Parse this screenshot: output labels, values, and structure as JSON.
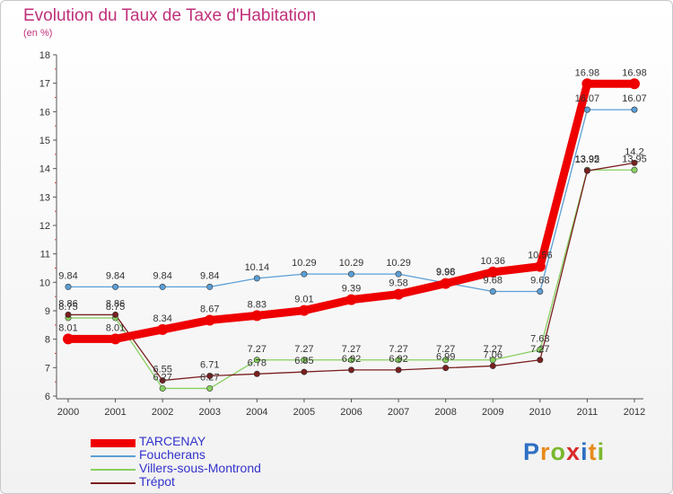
{
  "header": {
    "title": "Evolution du Taux de Taxe d'Habitation",
    "subtitle": "(en %)"
  },
  "logo": {
    "text": "Proxiti",
    "colors": [
      "#2e6fc4",
      "#e88a1a",
      "#7ab82e",
      "#d92b2b"
    ]
  },
  "chart_data": {
    "type": "line",
    "x": [
      "2000",
      "2001",
      "2002",
      "2003",
      "2004",
      "2005",
      "2006",
      "2007",
      "2008",
      "2009",
      "2010",
      "2011",
      "2012"
    ],
    "ylim": [
      6,
      18
    ],
    "yticks": [
      "6",
      "7",
      "8",
      "9",
      "10",
      "11",
      "12",
      "13",
      "14",
      "15",
      "16",
      "17",
      "18"
    ],
    "grid": false,
    "legend_position": "bottom-left",
    "series": [
      {
        "name": "TARCENAY",
        "color": "#ee0000",
        "width": 9,
        "values": [
          8.01,
          8.01,
          8.34,
          8.67,
          8.83,
          9.01,
          9.39,
          9.58,
          9.96,
          10.36,
          10.56,
          16.98,
          16.98
        ],
        "labels": [
          "8.01",
          "8.01",
          "8.34",
          "8.67",
          "8.83",
          "9.01",
          "9.39",
          "9.58",
          "9.96",
          "10.36",
          "10.56",
          "16.98",
          "16.98"
        ]
      },
      {
        "name": "Foucherans",
        "color": "#5b9fd6",
        "width": 1.3,
        "values": [
          9.84,
          9.84,
          9.84,
          9.84,
          10.14,
          10.29,
          10.29,
          10.29,
          9.98,
          9.68,
          9.68,
          16.07,
          16.07
        ],
        "labels": [
          "9.84",
          "9.84",
          "9.84",
          "9.84",
          "10.14",
          "10.29",
          "10.29",
          "10.29",
          "9.98",
          "9.68",
          "9.68",
          "16.07",
          "16.07"
        ]
      },
      {
        "name": "Villers-sous-Montrond",
        "color": "#88d060",
        "width": 1.3,
        "values": [
          8.75,
          8.75,
          6.27,
          6.27,
          7.27,
          7.27,
          7.27,
          7.27,
          7.27,
          7.27,
          7.63,
          13.95,
          13.95
        ],
        "labels": [
          "8.75",
          "8.75",
          "6.27",
          "6.27",
          "7.27",
          "7.27",
          "7.27",
          "7.27",
          "7.27",
          "7.27",
          "7.63",
          "13.95",
          "13.95"
        ]
      },
      {
        "name": "Trépot",
        "color": "#7a1f1f",
        "width": 1.3,
        "values": [
          8.86,
          8.86,
          6.55,
          6.71,
          6.78,
          6.85,
          6.92,
          6.92,
          6.99,
          7.06,
          7.27,
          13.92,
          14.2
        ],
        "labels": [
          "8.86",
          "8.86",
          "6.55",
          "6.71",
          "6.78",
          "6.85",
          "6.92",
          "6.92",
          "6.99",
          "7.06",
          "7.27",
          "13.92",
          "14.2"
        ]
      }
    ]
  }
}
